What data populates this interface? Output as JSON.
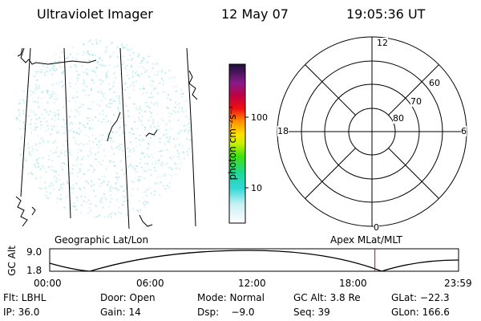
{
  "header": {
    "title": "Ultraviolet Imager",
    "date": "12 May 07",
    "time": "19:05:36 UT"
  },
  "colorbar": {
    "unit_label": "photon cm⁻²s⁻¹",
    "ticks": [
      "100",
      "10"
    ]
  },
  "polar": {
    "mlt_labels": [
      "12",
      "18",
      "6",
      "0"
    ],
    "lat_labels": [
      "60",
      "70",
      "80"
    ]
  },
  "map_labels": {
    "left": "Geographic Lat/Lon",
    "right": "Apex MLat/MLT"
  },
  "alt_plot": {
    "ylabel": "GC Alt",
    "yticks": [
      "9.0",
      "1.8"
    ],
    "xticks": [
      "00:00",
      "06:00",
      "12:00",
      "18:00",
      "23:59"
    ],
    "marker_time_hours": 19.09
  },
  "status": {
    "flt": "Flt: LBHL",
    "door": "Door: Open",
    "mode": "Mode: Normal",
    "gcalt": "GC Alt: 3.8 Re",
    "glat": "GLat: −22.3",
    "ip": "IP: 36.0",
    "gain": "Gain: 14",
    "dsp": "Dsp:    −9.0",
    "seq": "Seq: 39",
    "glon": "GLon: 166.6"
  },
  "colors": {
    "marker": "#d40000",
    "speckle": "#aee6ec"
  }
}
